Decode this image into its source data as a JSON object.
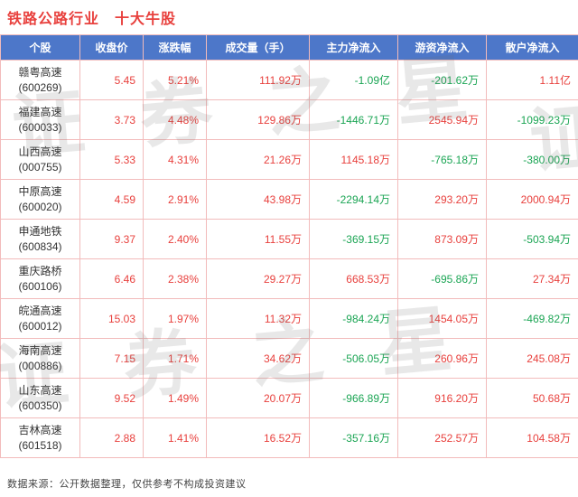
{
  "title": "铁路公路行业　十大牛股",
  "watermark": "证券之星",
  "footer": "数据来源：公开数据整理，仅供参考不构成投资建议",
  "colors": {
    "up": "#e8403d",
    "down": "#1ba554",
    "header_bg": "#4d77c9",
    "header_text": "#ffffff",
    "border": "#f2bbbb",
    "title": "#e8403d",
    "name_text": "#333333"
  },
  "chart_data": {
    "type": "table",
    "title": "铁路公路行业 十大牛股",
    "headers": [
      "个股",
      "收盘价",
      "涨跌幅",
      "成交量（手）",
      "主力净流入",
      "游资净流入",
      "散户净流入"
    ],
    "column_keys": [
      "close",
      "change",
      "volume",
      "main_inflow",
      "hot_money_inflow",
      "retail_inflow"
    ],
    "rows": [
      {
        "name": "赣粤高速",
        "code": "(600269)",
        "close": "5.45",
        "change": "5.21%",
        "volume": "111.92万",
        "main_inflow": "-1.09亿",
        "hot_money_inflow": "-201.62万",
        "retail_inflow": "1.11亿"
      },
      {
        "name": "福建高速",
        "code": "(600033)",
        "close": "3.73",
        "change": "4.48%",
        "volume": "129.86万",
        "main_inflow": "-1446.71万",
        "hot_money_inflow": "2545.94万",
        "retail_inflow": "-1099.23万"
      },
      {
        "name": "山西高速",
        "code": "(000755)",
        "close": "5.33",
        "change": "4.31%",
        "volume": "21.26万",
        "main_inflow": "1145.18万",
        "hot_money_inflow": "-765.18万",
        "retail_inflow": "-380.00万"
      },
      {
        "name": "中原高速",
        "code": "(600020)",
        "close": "4.59",
        "change": "2.91%",
        "volume": "43.98万",
        "main_inflow": "-2294.14万",
        "hot_money_inflow": "293.20万",
        "retail_inflow": "2000.94万"
      },
      {
        "name": "申通地铁",
        "code": "(600834)",
        "close": "9.37",
        "change": "2.40%",
        "volume": "11.55万",
        "main_inflow": "-369.15万",
        "hot_money_inflow": "873.09万",
        "retail_inflow": "-503.94万"
      },
      {
        "name": "重庆路桥",
        "code": "(600106)",
        "close": "6.46",
        "change": "2.38%",
        "volume": "29.27万",
        "main_inflow": "668.53万",
        "hot_money_inflow": "-695.86万",
        "retail_inflow": "27.34万"
      },
      {
        "name": "皖通高速",
        "code": "(600012)",
        "close": "15.03",
        "change": "1.97%",
        "volume": "11.32万",
        "main_inflow": "-984.24万",
        "hot_money_inflow": "1454.05万",
        "retail_inflow": "-469.82万"
      },
      {
        "name": "海南高速",
        "code": "(000886)",
        "close": "7.15",
        "change": "1.71%",
        "volume": "34.62万",
        "main_inflow": "-506.05万",
        "hot_money_inflow": "260.96万",
        "retail_inflow": "245.08万"
      },
      {
        "name": "山东高速",
        "code": "(600350)",
        "close": "9.52",
        "change": "1.49%",
        "volume": "20.07万",
        "main_inflow": "-966.89万",
        "hot_money_inflow": "916.20万",
        "retail_inflow": "50.68万"
      },
      {
        "name": "吉林高速",
        "code": "(601518)",
        "close": "2.88",
        "change": "1.41%",
        "volume": "16.52万",
        "main_inflow": "-357.16万",
        "hot_money_inflow": "252.57万",
        "retail_inflow": "104.58万"
      }
    ]
  }
}
